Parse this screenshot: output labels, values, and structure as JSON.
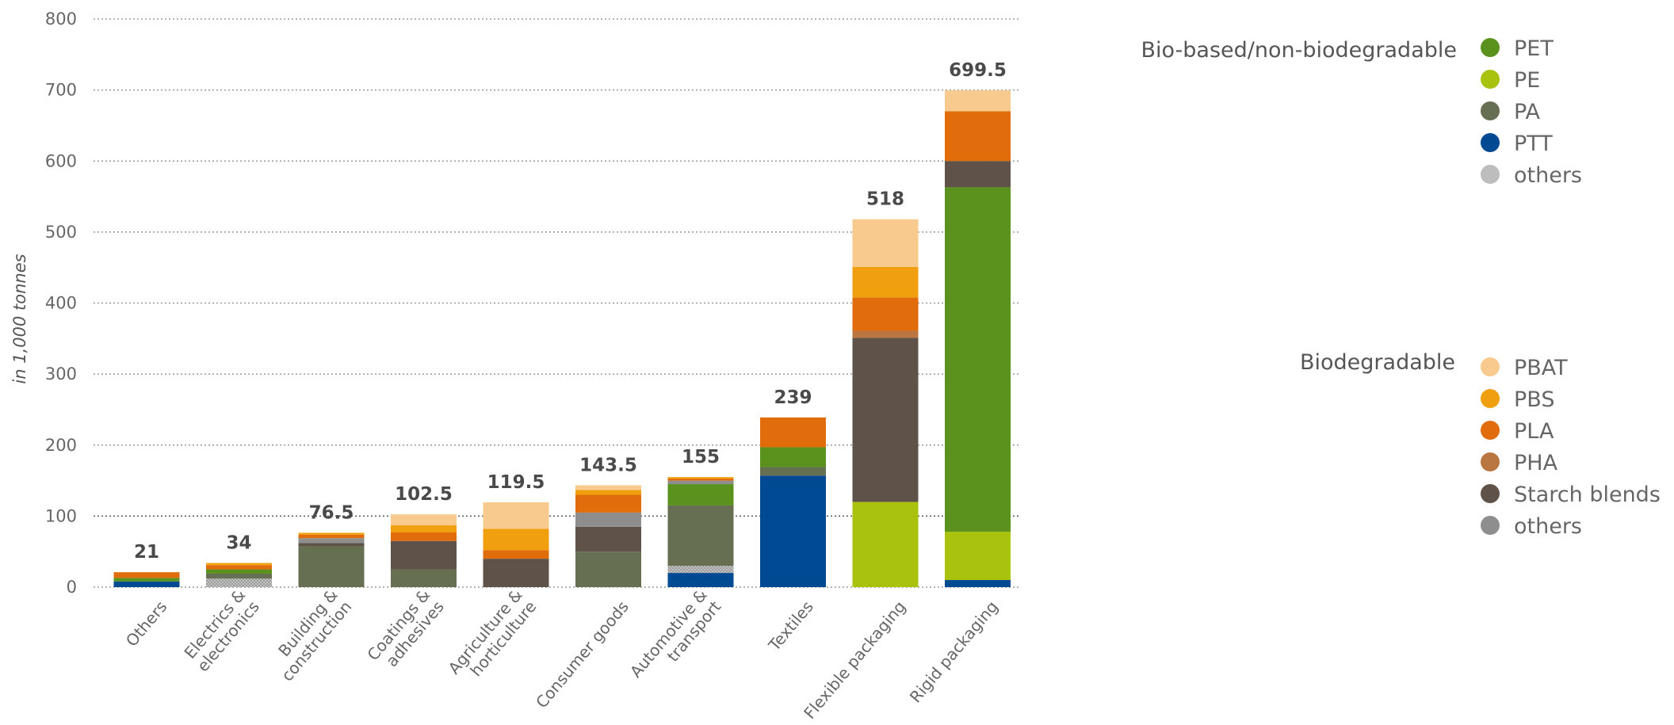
{
  "chart_data": {
    "type": "bar",
    "stacked": true,
    "ylabel": "in 1,000 tonnes",
    "ylim": [
      0,
      800
    ],
    "yticks": [
      0,
      100,
      200,
      300,
      400,
      500,
      600,
      700,
      800
    ],
    "grid": true,
    "categories": [
      [
        "Others"
      ],
      [
        "Electrics &",
        "electronics"
      ],
      [
        "Building &",
        "construction"
      ],
      [
        "Coatings &",
        "adhesives"
      ],
      [
        "Agriculture &",
        "horticulture"
      ],
      [
        "Consumer goods"
      ],
      [
        "Automotive &",
        "transport"
      ],
      [
        "Textiles"
      ],
      [
        "Flexible packaging"
      ],
      [
        "Rigid packaging"
      ]
    ],
    "totals": [
      "21",
      "34",
      "76.5",
      "102.5",
      "119.5",
      "143.5",
      "155",
      "239",
      "518",
      "699.5"
    ],
    "series": [
      {
        "name": "PTT",
        "group": "Bio-based/non-biodegradable",
        "color": "#004a93",
        "values": [
          8,
          0,
          0,
          0,
          0,
          0,
          20,
          157,
          0,
          10
        ]
      },
      {
        "name": "others",
        "group": "Bio-based/non-biodegradable",
        "color": "#bdbdbd",
        "pattern": true,
        "values": [
          0,
          12,
          0,
          0,
          0,
          0,
          10,
          0,
          0,
          0
        ]
      },
      {
        "name": "PE",
        "group": "Bio-based/non-biodegradable",
        "color": "#a9c20e",
        "values": [
          0,
          0,
          0,
          0,
          0,
          0,
          0,
          0,
          120,
          68
        ]
      },
      {
        "name": "PA",
        "group": "Bio-based/non-biodegradable",
        "color": "#676f52",
        "values": [
          0,
          7,
          58,
          25,
          0,
          50,
          85,
          12,
          0,
          0
        ]
      },
      {
        "name": "PET",
        "group": "Bio-based/non-biodegradable",
        "color": "#5a921d",
        "values": [
          5,
          6,
          0,
          0,
          0,
          0,
          30,
          28,
          0,
          485
        ]
      },
      {
        "name": "Starch blends",
        "group": "Biodegradable",
        "color": "#5e5249",
        "values": [
          0,
          0,
          4,
          40,
          40,
          35,
          0,
          0,
          231,
          37
        ]
      },
      {
        "name": "others",
        "group": "Biodegradable",
        "color": "#8e8e8e",
        "values": [
          0,
          0,
          7,
          0,
          0,
          20,
          5,
          0,
          0,
          0
        ]
      },
      {
        "name": "PHA",
        "group": "Biodegradable",
        "color": "#b97640",
        "values": [
          0,
          0,
          0,
          0,
          0,
          0,
          0,
          0,
          10,
          0
        ]
      },
      {
        "name": "PLA",
        "group": "Biodegradable",
        "color": "#e06c0c",
        "values": [
          8,
          6,
          5,
          12,
          12,
          25,
          3,
          42,
          47,
          70
        ]
      },
      {
        "name": "PBS",
        "group": "Biodegradable",
        "color": "#f0a00e",
        "values": [
          0,
          3,
          2.5,
          10,
          30,
          7,
          2,
          0,
          43,
          0
        ]
      },
      {
        "name": "PBAT",
        "group": "Biodegradable",
        "color": "#f8ca8e",
        "values": [
          0,
          0,
          0,
          15.5,
          37.5,
          6.5,
          0,
          0,
          67,
          29.5
        ]
      }
    ]
  },
  "legend": {
    "groups": [
      {
        "heading": "Bio-based/non-biodegradable",
        "items": [
          {
            "label": "PET",
            "color": "#5a921d"
          },
          {
            "label": "PE",
            "color": "#a9c20e"
          },
          {
            "label": "PA",
            "color": "#676f52"
          },
          {
            "label": "PTT",
            "color": "#004a93"
          },
          {
            "label": "others",
            "color": "#bdbdbd"
          }
        ]
      },
      {
        "heading": "Biodegradable",
        "items": [
          {
            "label": "PBAT",
            "color": "#f8ca8e"
          },
          {
            "label": "PBS",
            "color": "#f0a00e"
          },
          {
            "label": "PLA",
            "color": "#e06c0c"
          },
          {
            "label": "PHA",
            "color": "#b97640"
          },
          {
            "label": "Starch blends",
            "color": "#5e5249"
          },
          {
            "label": "others",
            "color": "#8e8e8e"
          }
        ]
      }
    ]
  }
}
